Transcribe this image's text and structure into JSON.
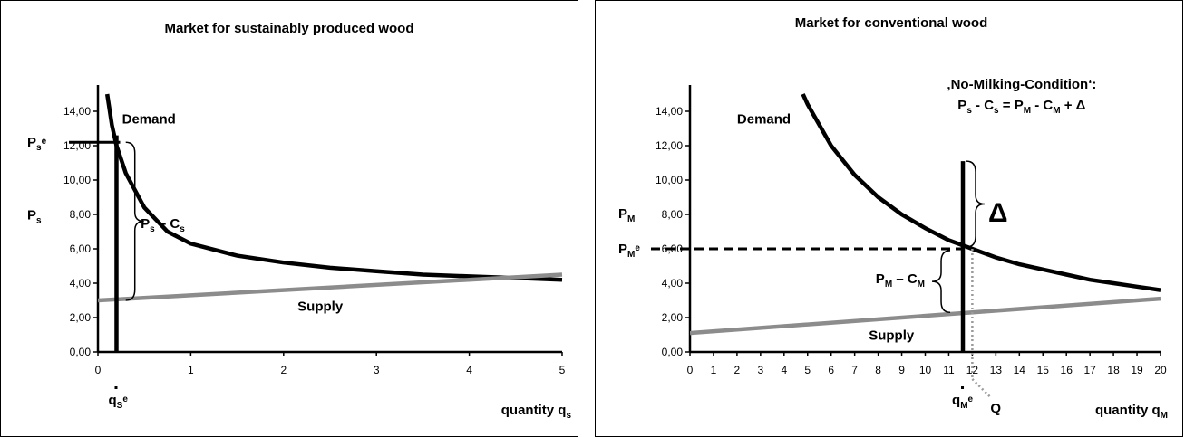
{
  "chart_data": [
    {
      "type": "line",
      "title": "Market for sustainably produced wood",
      "xlabel": "quantity q",
      "xlabel_sub": "s",
      "ylabel": "P",
      "ylabel_sub": "s",
      "xlim": [
        0,
        5
      ],
      "ylim": [
        0,
        15
      ],
      "x_ticks": [
        "0",
        "1",
        "2",
        "3",
        "4",
        "5"
      ],
      "y_ticks": [
        "0,00",
        "2,00",
        "4,00",
        "6,00",
        "8,00",
        "10,00",
        "12,00",
        "14,00"
      ],
      "series": [
        {
          "name": "Demand",
          "x": [
            0.1,
            0.15,
            0.2,
            0.3,
            0.5,
            0.75,
            1,
            1.5,
            2,
            2.5,
            3,
            3.5,
            4,
            4.5,
            5
          ],
          "y": [
            15.0,
            13.2,
            12.0,
            10.4,
            8.4,
            7.0,
            6.3,
            5.6,
            5.2,
            4.9,
            4.7,
            4.5,
            4.4,
            4.3,
            4.2
          ]
        },
        {
          "name": "Supply",
          "x": [
            0,
            5
          ],
          "y": [
            3.0,
            4.5
          ]
        }
      ],
      "annotations": {
        "equilibrium_price_label": "P",
        "equilibrium_price_sub": "s",
        "equilibrium_price_sup": "e",
        "equilibrium_price": 12.2,
        "equilibrium_quantity_label": "q",
        "equilibrium_quantity_sub": "S",
        "equilibrium_quantity_sup": "e",
        "equilibrium_quantity": 0.2,
        "margin_label_main": "P",
        "margin_label_sub1": "s",
        "margin_label_mid": " – C",
        "margin_label_sub2": "s",
        "margin_range": [
          3.0,
          12.2
        ]
      }
    },
    {
      "type": "line",
      "title": "Market for conventional wood",
      "xlabel": "quantity q",
      "xlabel_sub": "M",
      "ylabel": "P",
      "ylabel_sub": "M",
      "xlim": [
        0,
        20
      ],
      "ylim": [
        0,
        15
      ],
      "x_ticks": [
        "0",
        "1",
        "2",
        "3",
        "4",
        "5",
        "6",
        "7",
        "8",
        "9",
        "10",
        "11",
        "12",
        "13",
        "14",
        "15",
        "16",
        "17",
        "18",
        "19",
        "20"
      ],
      "y_ticks": [
        "0,00",
        "2,00",
        "4,00",
        "6,00",
        "8,00",
        "10,00",
        "12,00",
        "14,00"
      ],
      "series": [
        {
          "name": "Demand",
          "x": [
            4.8,
            5,
            6,
            7,
            8,
            9,
            10,
            11,
            12,
            13,
            14,
            15,
            16,
            17,
            18,
            19,
            20
          ],
          "y": [
            15.0,
            14.4,
            12.0,
            10.3,
            9.0,
            8.0,
            7.2,
            6.5,
            6.0,
            5.5,
            5.1,
            4.8,
            4.5,
            4.2,
            4.0,
            3.8,
            3.6
          ]
        },
        {
          "name": "Supply",
          "x": [
            0,
            20
          ],
          "y": [
            1.1,
            3.1
          ]
        }
      ],
      "annotations": {
        "condition_title": "‚No-Milking-Condition‘:",
        "condition_formula": {
          "a": "P",
          "a_sub": "s",
          "b": " - C",
          "b_sub": "s",
          "c": " = P",
          "c_sub": "M",
          "d": " - C",
          "d_sub": "M",
          "e": "  +  Δ"
        },
        "equilibrium_price_label": "P",
        "equilibrium_price_sub": "M",
        "equilibrium_price_sup": "e",
        "equilibrium_price": 6.0,
        "equilibrium_quantity_label": "q",
        "equilibrium_quantity_sub": "M",
        "equilibrium_quantity_sup": "e",
        "equilibrium_quantity": 11.6,
        "q_label": "Q",
        "q_value": 12.0,
        "delta_label": "Δ",
        "delta_range": [
          6.0,
          11.1
        ],
        "margin_label_main": "P",
        "margin_label_sub1": "M",
        "margin_label_mid": " – C",
        "margin_label_sub2": "M",
        "margin_range": [
          2.3,
          6.0
        ]
      }
    }
  ]
}
